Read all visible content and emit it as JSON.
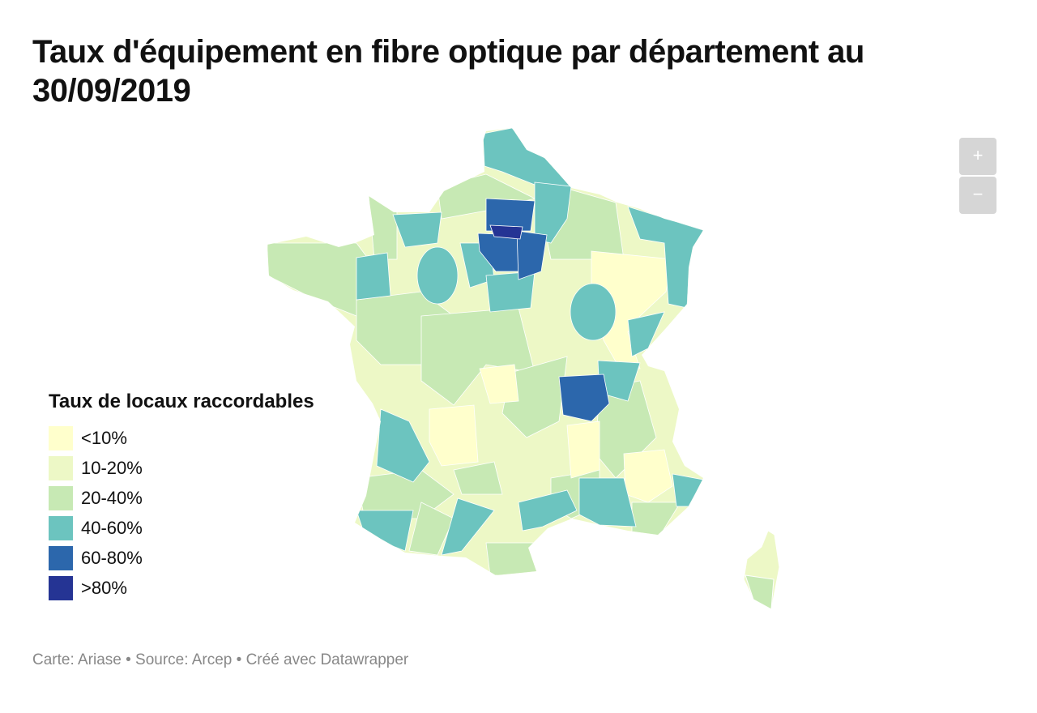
{
  "title": "Taux d'équipement en fibre optique par département au 30/09/2019",
  "zoom": {
    "in_label": "+",
    "out_label": "−"
  },
  "legend": {
    "title": "Taux de locaux raccordables",
    "items": [
      {
        "label": "<10%",
        "color": "#ffffcc"
      },
      {
        "label": "10-20%",
        "color": "#edf8c6"
      },
      {
        "label": "20-40%",
        "color": "#c7e9b4"
      },
      {
        "label": "40-60%",
        "color": "#6cc4bf"
      },
      {
        "label": "60-80%",
        "color": "#2c67ac"
      },
      {
        "label": ">80%",
        "color": "#253494"
      }
    ]
  },
  "footer": "Carte: Ariase • Source: Arcep • Créé avec Datawrapper"
}
